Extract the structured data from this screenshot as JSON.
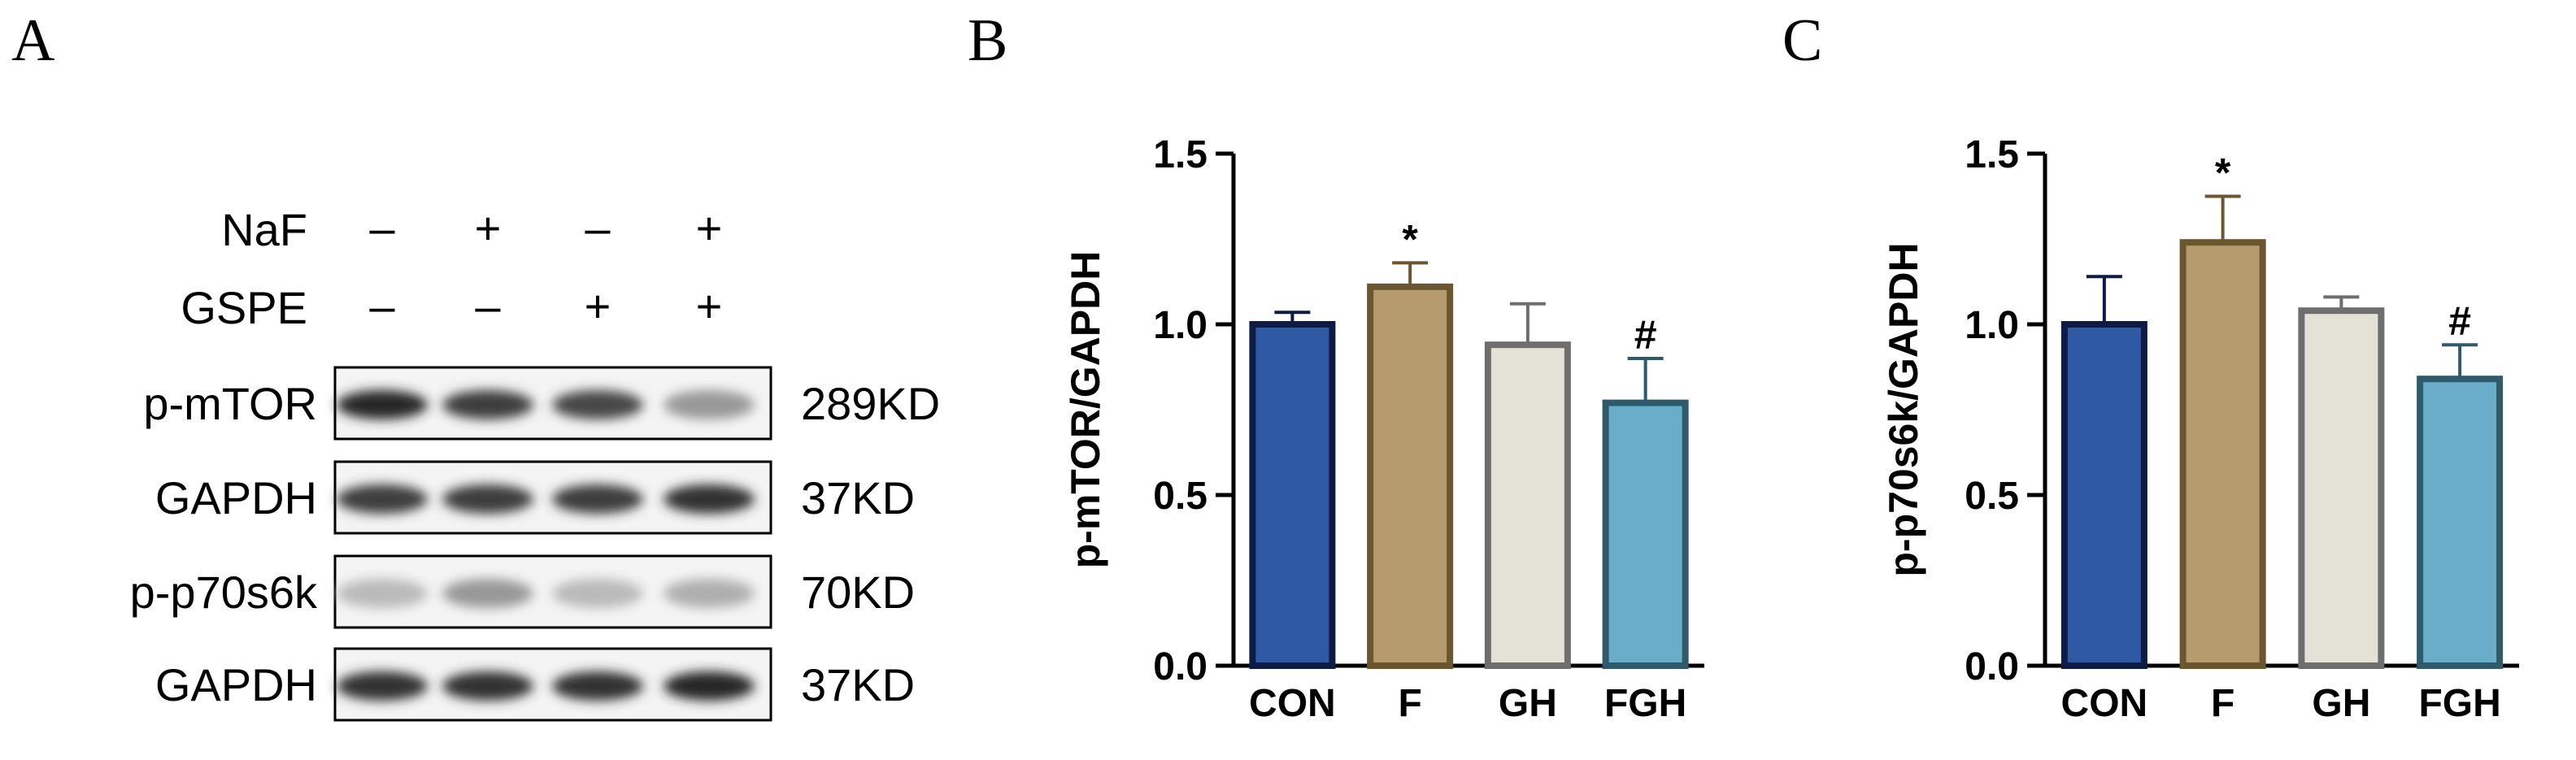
{
  "panels": {
    "a": "A",
    "b": "B",
    "c": "C"
  },
  "blot": {
    "treatments": [
      {
        "name": "NaF",
        "signs": [
          "–",
          "+",
          "–",
          "+"
        ]
      },
      {
        "name": "GSPE",
        "signs": [
          "–",
          "–",
          "+",
          "+"
        ]
      }
    ],
    "rows": [
      {
        "protein": "p-mTOR",
        "size": "289KD",
        "band_intensity": [
          0.95,
          0.85,
          0.8,
          0.45
        ]
      },
      {
        "protein": "GAPDH",
        "size": "37KD",
        "band_intensity": [
          0.85,
          0.85,
          0.85,
          0.9
        ]
      },
      {
        "protein": "p-p70s6k",
        "size": "70KD",
        "band_intensity": [
          0.3,
          0.45,
          0.3,
          0.35
        ]
      },
      {
        "protein": "GAPDH",
        "size": "37KD",
        "band_intensity": [
          0.9,
          0.9,
          0.9,
          0.95
        ]
      }
    ]
  },
  "chart_data": [
    {
      "type": "bar",
      "title": "",
      "xlabel": "",
      "ylabel": "p-mTOR/GAPDH",
      "ylim": [
        0,
        1.5
      ],
      "yticks": [
        "0.0",
        "0.5",
        "1.0",
        "1.5"
      ],
      "categories": [
        "CON",
        "F",
        "GH",
        "FGH"
      ],
      "values": [
        1.0,
        1.11,
        0.94,
        0.77
      ],
      "errors": [
        0.035,
        0.07,
        0.12,
        0.13
      ],
      "significance": [
        "",
        "*",
        "",
        "#"
      ],
      "fill_colors": [
        "#2f59a4",
        "#b69b6e",
        "#e4e1d6",
        "#6aadc9"
      ],
      "edge_colors": [
        "#0d1b45",
        "#6b5630",
        "#6e6e6e",
        "#2f5a6a"
      ]
    },
    {
      "type": "bar",
      "title": "",
      "xlabel": "",
      "ylabel": "p-p70s6k/GAPDH",
      "ylim": [
        0,
        1.5
      ],
      "yticks": [
        "0.0",
        "0.5",
        "1.0",
        "1.5"
      ],
      "categories": [
        "CON",
        "F",
        "GH",
        "FGH"
      ],
      "values": [
        1.0,
        1.24,
        1.04,
        0.84
      ],
      "errors": [
        0.14,
        0.135,
        0.04,
        0.1
      ],
      "significance": [
        "",
        "*",
        "",
        "#"
      ],
      "fill_colors": [
        "#2f59a4",
        "#b69b6e",
        "#e4e1d6",
        "#6aadc9"
      ],
      "edge_colors": [
        "#0d1b45",
        "#6b5630",
        "#6e6e6e",
        "#2f5a6a"
      ]
    }
  ]
}
